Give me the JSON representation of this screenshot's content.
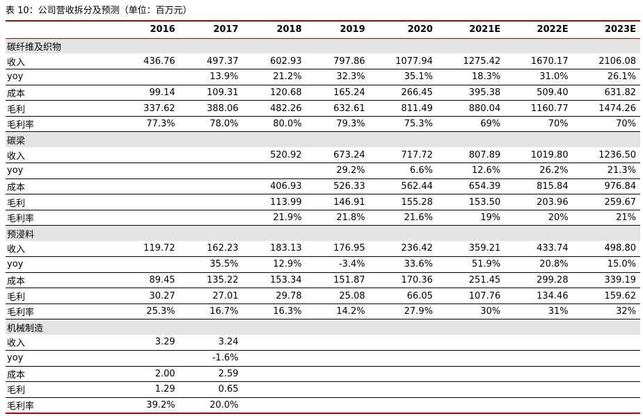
{
  "caption": "表 10：公司营收拆分及预测（单位：百万元）",
  "header": {
    "label": "",
    "years": [
      "2016",
      "2017",
      "2018",
      "2019",
      "2020",
      "2021E",
      "2022E",
      "2023E"
    ]
  },
  "sections": [
    {
      "name": "碳纤维及织物",
      "rows": [
        {
          "label": "收入",
          "values": [
            "436.76",
            "497.37",
            "602.93",
            "797.86",
            "1077.94",
            "1275.42",
            "1670.17",
            "2106.08"
          ]
        },
        {
          "label": "yoy",
          "values": [
            "",
            "13.9%",
            "21.2%",
            "32.3%",
            "35.1%",
            "18.3%",
            "31.0%",
            "26.1%"
          ]
        },
        {
          "label": "成本",
          "values": [
            "99.14",
            "109.31",
            "120.68",
            "165.24",
            "266.45",
            "395.38",
            "509.40",
            "631.82"
          ]
        },
        {
          "label": "毛利",
          "values": [
            "337.62",
            "388.06",
            "482.26",
            "632.61",
            "811.49",
            "880.04",
            "1160.77",
            "1474.26"
          ]
        },
        {
          "label": "毛利率",
          "values": [
            "77.3%",
            "78.0%",
            "80.0%",
            "79.3%",
            "75.3%",
            "69%",
            "70%",
            "70%"
          ]
        }
      ]
    },
    {
      "name": "碳梁",
      "rows": [
        {
          "label": "收入",
          "values": [
            "",
            "",
            "520.92",
            "673.24",
            "717.72",
            "807.89",
            "1019.80",
            "1236.50"
          ]
        },
        {
          "label": "yoy",
          "values": [
            "",
            "",
            "",
            "29.2%",
            "6.6%",
            "12.6%",
            "26.2%",
            "21.3%"
          ]
        },
        {
          "label": "成本",
          "values": [
            "",
            "",
            "406.93",
            "526.33",
            "562.44",
            "654.39",
            "815.84",
            "976.84"
          ]
        },
        {
          "label": "毛利",
          "values": [
            "",
            "",
            "113.99",
            "146.91",
            "155.28",
            "153.50",
            "203.96",
            "259.67"
          ]
        },
        {
          "label": "毛利率",
          "values": [
            "",
            "",
            "21.9%",
            "21.8%",
            "21.6%",
            "19%",
            "20%",
            "21%"
          ]
        }
      ]
    },
    {
      "name": "预浸料",
      "rows": [
        {
          "label": "收入",
          "values": [
            "119.72",
            "162.23",
            "183.13",
            "176.95",
            "236.42",
            "359.21",
            "433.74",
            "498.80"
          ]
        },
        {
          "label": "yoy",
          "values": [
            "",
            "35.5%",
            "12.9%",
            "-3.4%",
            "33.6%",
            "51.9%",
            "20.8%",
            "15.0%"
          ]
        },
        {
          "label": "成本",
          "values": [
            "89.45",
            "135.22",
            "153.34",
            "151.87",
            "170.36",
            "251.45",
            "299.28",
            "339.19"
          ]
        },
        {
          "label": "毛利",
          "values": [
            "30.27",
            "27.01",
            "29.78",
            "25.08",
            "66.05",
            "107.76",
            "134.46",
            "159.62"
          ]
        },
        {
          "label": "毛利率",
          "values": [
            "25.3%",
            "16.7%",
            "16.3%",
            "14.2%",
            "27.9%",
            "30%",
            "31%",
            "32%"
          ]
        }
      ]
    },
    {
      "name": "机械制造",
      "rows": [
        {
          "label": "收入",
          "values": [
            "3.29",
            "3.24",
            "",
            "",
            "",
            "",
            "",
            ""
          ]
        },
        {
          "label": "yoy",
          "values": [
            "",
            "-1.6%",
            "",
            "",
            "",
            "",
            "",
            ""
          ]
        },
        {
          "label": "成本",
          "values": [
            "2.00",
            "2.59",
            "",
            "",
            "",
            "",
            "",
            ""
          ]
        },
        {
          "label": "毛利",
          "values": [
            "1.29",
            "0.65",
            "",
            "",
            "",
            "",
            "",
            ""
          ]
        },
        {
          "label": "毛利率",
          "values": [
            "39.2%",
            "20.0%",
            "",
            "",
            "",
            "",
            "",
            ""
          ]
        }
      ]
    }
  ]
}
